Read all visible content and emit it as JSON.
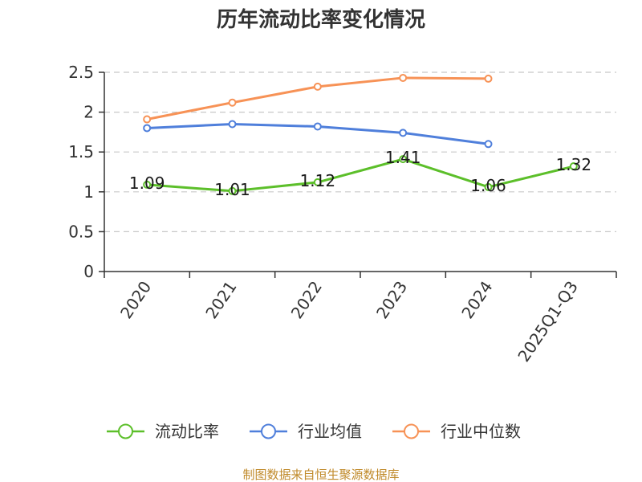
{
  "chart_data": {
    "type": "line",
    "title": "历年流动比率变化情况",
    "xlabel": "",
    "ylabel": "",
    "categories": [
      "2020",
      "2021",
      "2022",
      "2023",
      "2024",
      "2025Q1-Q3"
    ],
    "series": [
      {
        "name": "流动比率",
        "color": "#5cbf2a",
        "values": [
          1.09,
          1.01,
          1.12,
          1.41,
          1.06,
          1.32
        ],
        "show_labels": true
      },
      {
        "name": "行业均值",
        "color": "#4f7fdb",
        "values": [
          1.8,
          1.85,
          1.82,
          1.74,
          1.6,
          null
        ],
        "show_labels": false
      },
      {
        "name": "行业中位数",
        "color": "#f79256",
        "values": [
          1.91,
          2.12,
          2.32,
          2.43,
          2.42,
          null
        ],
        "show_labels": false
      }
    ],
    "ylim": [
      0,
      2.5
    ],
    "yticks": [
      0,
      0.5,
      1,
      1.5,
      2,
      2.5
    ],
    "grid": true,
    "legend": "bottom-center"
  },
  "source_note": "制图数据来自恒生聚源数据库"
}
